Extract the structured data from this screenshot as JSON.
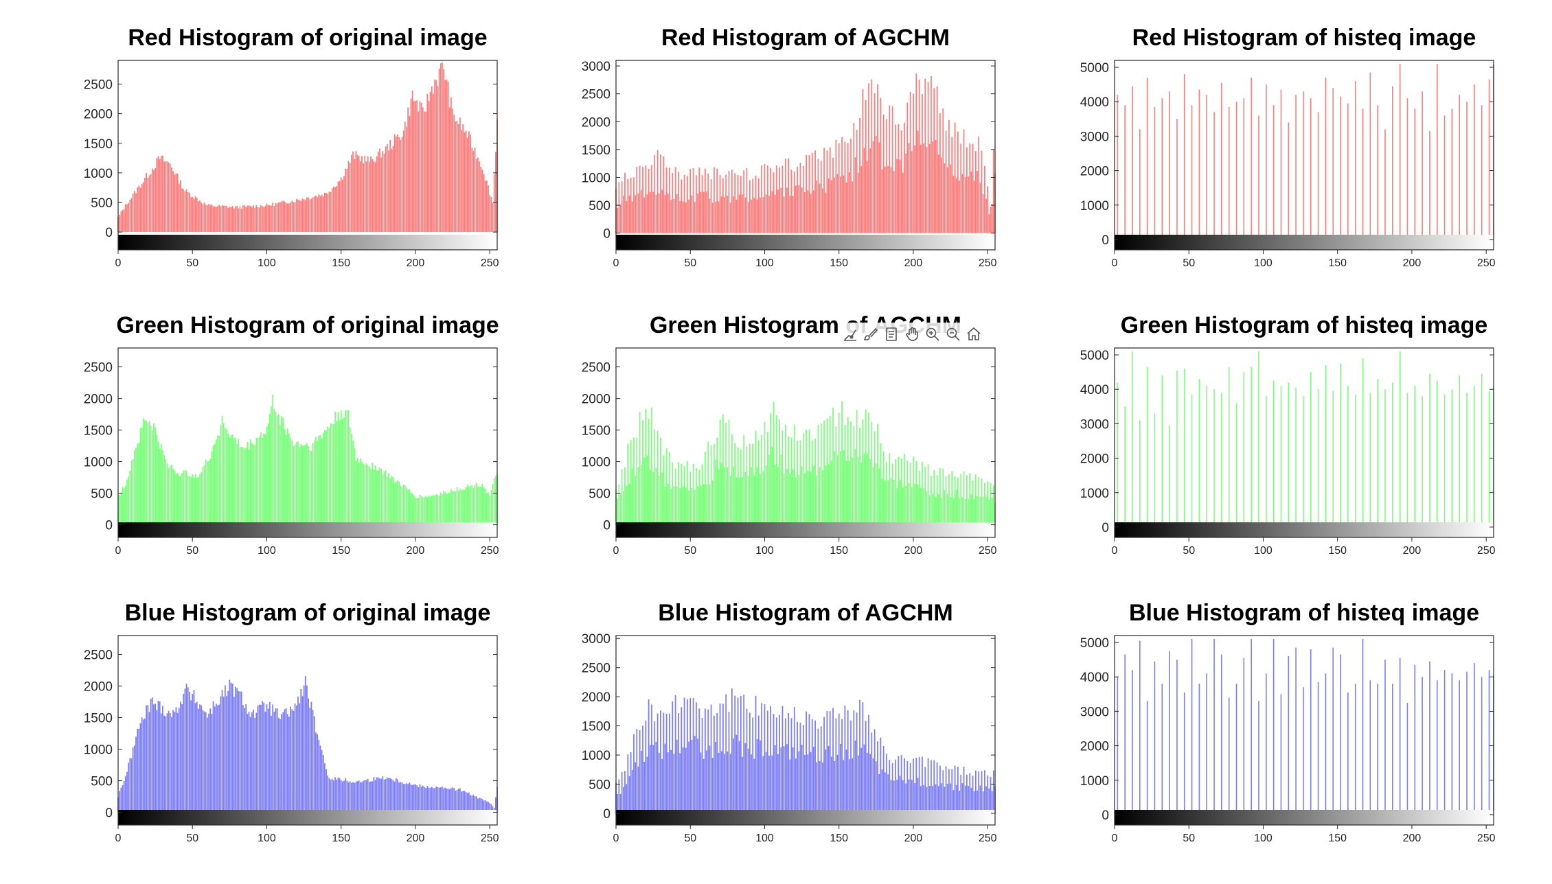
{
  "toolbar": {
    "icons": [
      "data-tips-icon",
      "brush-icon",
      "export-icon",
      "pan-icon",
      "zoom-in-icon",
      "zoom-out-icon",
      "home-icon"
    ]
  },
  "colors": {
    "red": "#ff7c7c",
    "green": "#7cff7c",
    "blue": "#7c7cff",
    "axis": "#262626"
  },
  "chart_data": [
    {
      "type": "bar",
      "channel": "red",
      "title": "Red Histogram of original image",
      "xlim": [
        0,
        255
      ],
      "ylim": [
        -300,
        2900
      ],
      "xticks": [
        0,
        50,
        100,
        150,
        200,
        250
      ],
      "yticks": [
        0,
        500,
        1000,
        1500,
        2000,
        2500
      ],
      "bins": 256,
      "pattern": "smooth",
      "profile": [
        [
          0,
          250
        ],
        [
          5,
          450
        ],
        [
          15,
          800
        ],
        [
          28,
          1250
        ],
        [
          35,
          1150
        ],
        [
          45,
          700
        ],
        [
          60,
          450
        ],
        [
          80,
          420
        ],
        [
          100,
          450
        ],
        [
          120,
          540
        ],
        [
          140,
          650
        ],
        [
          150,
          900
        ],
        [
          158,
          1300
        ],
        [
          170,
          1200
        ],
        [
          180,
          1400
        ],
        [
          192,
          1700
        ],
        [
          198,
          2300
        ],
        [
          205,
          2000
        ],
        [
          212,
          2500
        ],
        [
          219,
          2800
        ],
        [
          225,
          2000
        ],
        [
          235,
          1650
        ],
        [
          245,
          1100
        ],
        [
          252,
          500
        ],
        [
          255,
          1900
        ]
      ]
    },
    {
      "type": "bar",
      "channel": "red",
      "title": "Red Histogram of AGCHM",
      "xlim": [
        0,
        255
      ],
      "ylim": [
        -300,
        3100
      ],
      "xticks": [
        0,
        50,
        100,
        150,
        200,
        250
      ],
      "yticks": [
        0,
        500,
        1000,
        1500,
        2000,
        2500,
        3000
      ],
      "bins": 256,
      "pattern": "spiky",
      "profile": [
        [
          0,
          750
        ],
        [
          5,
          900
        ],
        [
          15,
          1050
        ],
        [
          28,
          1250
        ],
        [
          35,
          1100
        ],
        [
          45,
          950
        ],
        [
          60,
          1000
        ],
        [
          80,
          950
        ],
        [
          100,
          1050
        ],
        [
          120,
          1150
        ],
        [
          140,
          1300
        ],
        [
          150,
          1450
        ],
        [
          158,
          1600
        ],
        [
          165,
          2100
        ],
        [
          172,
          2550
        ],
        [
          180,
          2000
        ],
        [
          192,
          1800
        ],
        [
          200,
          2400
        ],
        [
          210,
          2750
        ],
        [
          218,
          2100
        ],
        [
          230,
          1600
        ],
        [
          245,
          1500
        ],
        [
          252,
          400
        ],
        [
          255,
          1700
        ]
      ]
    },
    {
      "type": "bar",
      "channel": "red",
      "title": "Red Histogram of histeq image",
      "xlim": [
        0,
        255
      ],
      "ylim": [
        -300,
        5200
      ],
      "xticks": [
        0,
        50,
        100,
        150,
        200,
        250
      ],
      "yticks": [
        0,
        1000,
        2000,
        3000,
        4000,
        5000
      ],
      "bins": 256,
      "pattern": "sparse",
      "sparse_step": 5,
      "sparse_values": [
        4200,
        3900,
        4450,
        3200,
        4700,
        3850,
        4100,
        4300,
        3500,
        4800,
        3900,
        4350,
        4200,
        3700,
        4550,
        3850,
        4000,
        4100,
        4700,
        3600,
        4500,
        3900,
        4350,
        3400,
        4200,
        4300,
        4100,
        3700,
        4700,
        4400,
        4150,
        3950,
        4600,
        3800,
        4850,
        3900,
        3200,
        4450,
        5100,
        4100,
        3800,
        4300,
        3150,
        5100,
        3600,
        3800,
        4200,
        4000,
        4500,
        3900,
        4650,
        3750,
        5100
      ]
    },
    {
      "type": "bar",
      "channel": "green",
      "title": "Green Histogram of original image",
      "xlim": [
        0,
        255
      ],
      "ylim": [
        -200,
        2800
      ],
      "xticks": [
        0,
        50,
        100,
        150,
        200,
        250
      ],
      "yticks": [
        0,
        500,
        1000,
        1500,
        2000,
        2500
      ],
      "bins": 256,
      "pattern": "smooth",
      "profile": [
        [
          0,
          450
        ],
        [
          5,
          650
        ],
        [
          12,
          1250
        ],
        [
          18,
          1680
        ],
        [
          24,
          1550
        ],
        [
          32,
          1000
        ],
        [
          40,
          820
        ],
        [
          55,
          800
        ],
        [
          62,
          1100
        ],
        [
          70,
          1650
        ],
        [
          76,
          1400
        ],
        [
          85,
          1200
        ],
        [
          100,
          1500
        ],
        [
          104,
          1950
        ],
        [
          110,
          1650
        ],
        [
          118,
          1300
        ],
        [
          130,
          1250
        ],
        [
          140,
          1500
        ],
        [
          150,
          1800
        ],
        [
          155,
          1700
        ],
        [
          160,
          1050
        ],
        [
          175,
          900
        ],
        [
          190,
          650
        ],
        [
          200,
          450
        ],
        [
          210,
          450
        ],
        [
          225,
          550
        ],
        [
          245,
          650
        ],
        [
          250,
          450
        ],
        [
          255,
          850
        ]
      ]
    },
    {
      "type": "bar",
      "channel": "green",
      "title": "Green Histogram of AGCHM",
      "xlim": [
        0,
        255
      ],
      "ylim": [
        -200,
        2800
      ],
      "xticks": [
        0,
        50,
        100,
        150,
        200,
        250
      ],
      "yticks": [
        0,
        500,
        1000,
        1500,
        2000,
        2500
      ],
      "bins": 256,
      "pattern": "spiky",
      "profile": [
        [
          0,
          500
        ],
        [
          5,
          900
        ],
        [
          12,
          1300
        ],
        [
          18,
          1600
        ],
        [
          24,
          1550
        ],
        [
          32,
          1100
        ],
        [
          40,
          850
        ],
        [
          55,
          850
        ],
        [
          62,
          1100
        ],
        [
          70,
          1550
        ],
        [
          76,
          1400
        ],
        [
          85,
          1200
        ],
        [
          100,
          1450
        ],
        [
          106,
          1700
        ],
        [
          115,
          1400
        ],
        [
          125,
          1300
        ],
        [
          140,
          1450
        ],
        [
          150,
          1650
        ],
        [
          165,
          1600
        ],
        [
          175,
          1550
        ],
        [
          180,
          1050
        ],
        [
          195,
          950
        ],
        [
          210,
          800
        ],
        [
          225,
          750
        ],
        [
          240,
          700
        ],
        [
          255,
          600
        ]
      ]
    },
    {
      "type": "bar",
      "channel": "green",
      "title": "Green Histogram of histeq image",
      "xlim": [
        0,
        255
      ],
      "ylim": [
        -300,
        5200
      ],
      "xticks": [
        0,
        50,
        100,
        150,
        200,
        250
      ],
      "yticks": [
        0,
        1000,
        2000,
        3000,
        4000,
        5000
      ],
      "bins": 256,
      "pattern": "sparse",
      "sparse_step": 5,
      "sparse_values": [
        4200,
        3500,
        5100,
        3100,
        4650,
        3300,
        4400,
        2950,
        4550,
        4600,
        3850,
        4300,
        4100,
        4000,
        3900,
        4650,
        3600,
        4500,
        4650,
        5100,
        3800,
        4250,
        4100,
        4200,
        4050,
        3800,
        4500,
        4000,
        4700,
        3950,
        4750,
        4100,
        3850,
        4900,
        3900,
        4300,
        4000,
        4200,
        5100,
        3900,
        4100,
        3800,
        4450,
        4250,
        3850,
        4000,
        4400,
        3900,
        4100,
        4450,
        3950,
        4000,
        4100
      ]
    },
    {
      "type": "bar",
      "channel": "blue",
      "title": "Blue Histogram of original image",
      "xlim": [
        0,
        255
      ],
      "ylim": [
        -200,
        2800
      ],
      "xticks": [
        0,
        50,
        100,
        150,
        200,
        250
      ],
      "yticks": [
        0,
        500,
        1000,
        1500,
        2000,
        2500
      ],
      "bins": 256,
      "pattern": "smooth",
      "profile": [
        [
          0,
          250
        ],
        [
          6,
          650
        ],
        [
          14,
          1350
        ],
        [
          22,
          1750
        ],
        [
          30,
          1650
        ],
        [
          38,
          1550
        ],
        [
          45,
          1950
        ],
        [
          52,
          1800
        ],
        [
          60,
          1550
        ],
        [
          68,
          1800
        ],
        [
          76,
          2000
        ],
        [
          82,
          1850
        ],
        [
          90,
          1550
        ],
        [
          100,
          1700
        ],
        [
          110,
          1500
        ],
        [
          120,
          1700
        ],
        [
          126,
          2050
        ],
        [
          130,
          1650
        ],
        [
          136,
          1000
        ],
        [
          142,
          550
        ],
        [
          160,
          480
        ],
        [
          180,
          560
        ],
        [
          200,
          430
        ],
        [
          230,
          360
        ],
        [
          250,
          150
        ],
        [
          253,
          70
        ],
        [
          255,
          380
        ]
      ]
    },
    {
      "type": "bar",
      "channel": "blue",
      "title": "Blue Histogram of AGCHM",
      "xlim": [
        0,
        255
      ],
      "ylim": [
        -200,
        3050
      ],
      "xticks": [
        0,
        50,
        100,
        150,
        200,
        250
      ],
      "yticks": [
        0,
        500,
        1000,
        1500,
        2000,
        2500,
        3000
      ],
      "bins": 256,
      "pattern": "spiky",
      "profile": [
        [
          0,
          450
        ],
        [
          6,
          750
        ],
        [
          14,
          1350
        ],
        [
          22,
          1700
        ],
        [
          30,
          1600
        ],
        [
          40,
          1700
        ],
        [
          50,
          1900
        ],
        [
          60,
          1650
        ],
        [
          70,
          1750
        ],
        [
          80,
          1850
        ],
        [
          90,
          1650
        ],
        [
          100,
          1750
        ],
        [
          110,
          1600
        ],
        [
          125,
          1600
        ],
        [
          140,
          1500
        ],
        [
          150,
          1650
        ],
        [
          165,
          1700
        ],
        [
          175,
          1250
        ],
        [
          182,
          900
        ],
        [
          200,
          850
        ],
        [
          215,
          800
        ],
        [
          230,
          700
        ],
        [
          245,
          650
        ],
        [
          255,
          650
        ]
      ]
    },
    {
      "type": "bar",
      "channel": "blue",
      "title": "Blue Histogram of histeq image",
      "xlim": [
        0,
        255
      ],
      "ylim": [
        -300,
        5200
      ],
      "xticks": [
        0,
        50,
        100,
        150,
        200,
        250
      ],
      "yticks": [
        0,
        1000,
        2000,
        3000,
        4000,
        5000
      ],
      "bins": 256,
      "pattern": "sparse",
      "sparse_step": 5,
      "sparse_values": [
        4000,
        4650,
        4200,
        5050,
        3300,
        4450,
        3800,
        4750,
        4500,
        3550,
        5100,
        3800,
        4100,
        5100,
        4650,
        3400,
        3800,
        4550,
        5100,
        3300,
        4100,
        5100,
        3500,
        4600,
        4850,
        3700,
        4800,
        3850,
        4100,
        4850,
        4650,
        3550,
        3800,
        5100,
        3900,
        3800,
        4500,
        3800,
        4550,
        3250,
        4350,
        4000,
        4450,
        3900,
        4200,
        4100,
        3900,
        4150,
        4400,
        4000,
        4200,
        4100,
        4050
      ]
    }
  ]
}
